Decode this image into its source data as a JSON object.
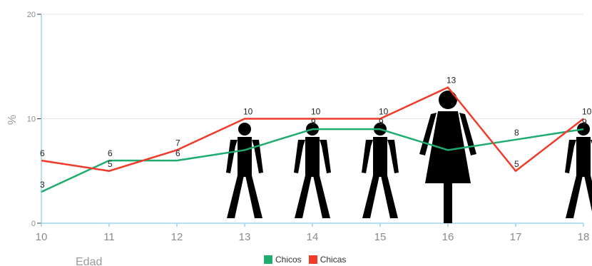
{
  "chart_data": {
    "type": "line",
    "xlabel": "Edad",
    "ylabel": "%",
    "x": [
      10,
      11,
      12,
      13,
      14,
      15,
      16,
      17,
      18
    ],
    "ylim": [
      0,
      20
    ],
    "yticks": [
      0,
      10,
      20
    ],
    "series": [
      {
        "name": "Chicos",
        "color": "#1fad6f",
        "values": [
          3,
          6,
          6,
          7,
          9,
          9,
          7,
          8,
          9
        ]
      },
      {
        "name": "Chicas",
        "color": "#f03a2a",
        "values": [
          6,
          5,
          7,
          10,
          10,
          10,
          13,
          5,
          10
        ]
      }
    ],
    "data_labels": {
      "Chicos": [
        "3",
        "6",
        "6",
        "",
        "9",
        "9",
        "",
        "8",
        "9"
      ],
      "Chicas": [
        "6",
        "5",
        "7",
        "10",
        "10",
        "10",
        "13",
        "",
        "10"
      ]
    },
    "extra_label_17": "5",
    "figures": [
      {
        "x": 13,
        "kind": "male-figure-icon"
      },
      {
        "x": 14,
        "kind": "male-figure-icon"
      },
      {
        "x": 15,
        "kind": "male-figure-icon"
      },
      {
        "x": 16,
        "kind": "female-figure-icon"
      },
      {
        "x": 18,
        "kind": "male-figure-icon"
      }
    ]
  }
}
